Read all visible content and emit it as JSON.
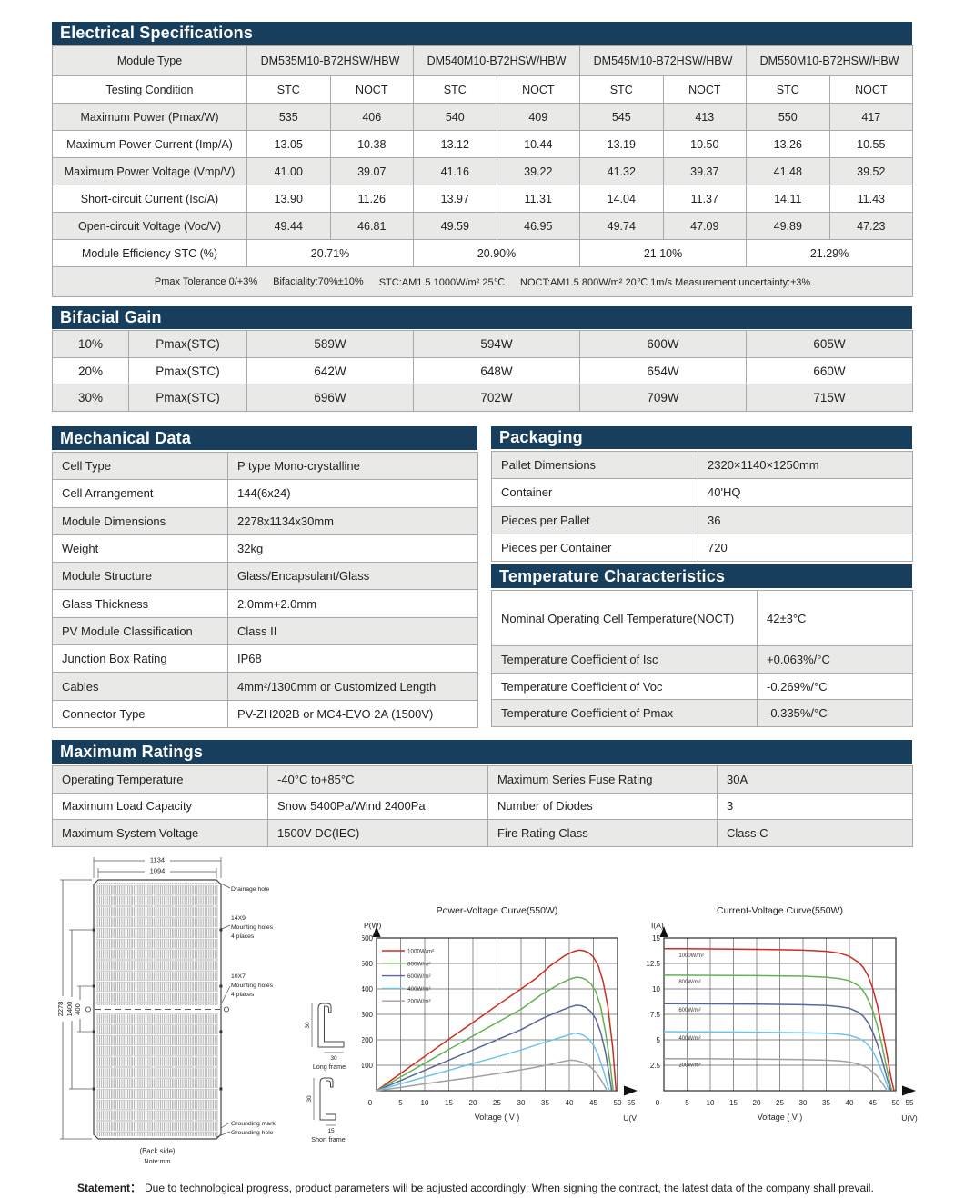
{
  "electrical": {
    "title": "Electrical Specifications",
    "module_type_label": "Module Type",
    "module_types": [
      "DM535M10-B72HSW/HBW",
      "DM540M10-B72HSW/HBW",
      "DM545M10-B72HSW/HBW",
      "DM550M10-B72HSW/HBW"
    ],
    "testing_condition_label": "Testing Condition",
    "conditions": [
      "STC",
      "NOCT",
      "STC",
      "NOCT",
      "STC",
      "NOCT",
      "STC",
      "NOCT"
    ],
    "rows": [
      {
        "label": "Maximum Power (Pmax/W)",
        "values": [
          "535",
          "406",
          "540",
          "409",
          "545",
          "413",
          "550",
          "417"
        ]
      },
      {
        "label": "Maximum Power Current (Imp/A)",
        "values": [
          "13.05",
          "10.38",
          "13.12",
          "10.44",
          "13.19",
          "10.50",
          "13.26",
          "10.55"
        ]
      },
      {
        "label": "Maximum Power Voltage (Vmp/V)",
        "values": [
          "41.00",
          "39.07",
          "41.16",
          "39.22",
          "41.32",
          "39.37",
          "41.48",
          "39.52"
        ]
      },
      {
        "label": "Short-circuit Current (Isc/A)",
        "values": [
          "13.90",
          "11.26",
          "13.97",
          "11.31",
          "14.04",
          "11.37",
          "14.11",
          "11.43"
        ]
      },
      {
        "label": "Open-circuit Voltage (Voc/V)",
        "values": [
          "49.44",
          "46.81",
          "49.59",
          "46.95",
          "49.74",
          "47.09",
          "49.89",
          "47.23"
        ]
      }
    ],
    "efficiency_label": "Module Efficiency STC (%)",
    "efficiency_values": [
      "20.71%",
      "20.90%",
      "21.10%",
      "21.29%"
    ],
    "footnotes": [
      "Pmax Tolerance 0/+3%",
      "Bifaciality:70%±10%",
      "STC:AM1.5 1000W/m² 25℃",
      "NOCT:AM1.5 800W/m² 20℃ 1m/s Measurement uncertainty:±3%"
    ]
  },
  "bifacial": {
    "title": "Bifacial Gain",
    "rows": [
      {
        "gain": "10%",
        "label": "Pmax(STC)",
        "values": [
          "589W",
          "594W",
          "600W",
          "605W"
        ]
      },
      {
        "gain": "20%",
        "label": "Pmax(STC)",
        "values": [
          "642W",
          "648W",
          "654W",
          "660W"
        ]
      },
      {
        "gain": "30%",
        "label": "Pmax(STC)",
        "values": [
          "696W",
          "702W",
          "709W",
          "715W"
        ]
      }
    ]
  },
  "mechanical": {
    "title": "Mechanical Data",
    "rows": [
      {
        "label": "Cell Type",
        "value": "P type Mono-crystalline"
      },
      {
        "label": "Cell Arrangement",
        "value": "144(6x24)"
      },
      {
        "label": "Module Dimensions",
        "value": "2278x1134x30mm"
      },
      {
        "label": "Weight",
        "value": "32kg"
      },
      {
        "label": "Module Structure",
        "value": "Glass/Encapsulant/Glass"
      },
      {
        "label": "Glass Thickness",
        "value": "2.0mm+2.0mm"
      },
      {
        "label": "PV Module Classification",
        "value": "Class II"
      },
      {
        "label": "Junction Box Rating",
        "value": "IP68"
      },
      {
        "label": "Cables",
        "value": "4mm²/1300mm or Customized Length"
      },
      {
        "label": "Connector Type",
        "value": "PV-ZH202B or MC4-EVO 2A (1500V)"
      }
    ]
  },
  "packaging": {
    "title": "Packaging",
    "rows": [
      {
        "label": "Pallet Dimensions",
        "value": "2320×1140×1250mm"
      },
      {
        "label": "Container",
        "value": "40'HQ"
      },
      {
        "label": "Pieces per Pallet",
        "value": "36"
      },
      {
        "label": "Pieces per Container",
        "value": "720"
      }
    ]
  },
  "temperature": {
    "title": "Temperature Characteristics",
    "rows": [
      {
        "label": "Nominal Operating Cell Temperature(NOCT)",
        "value": "42±3°C"
      },
      {
        "label": "Temperature Coefficient of Isc",
        "value": "+0.063%/°C"
      },
      {
        "label": "Temperature Coefficient of Voc",
        "value": "-0.269%/°C"
      },
      {
        "label": "Temperature Coefficient of Pmax",
        "value": "-0.335%/°C"
      }
    ]
  },
  "maximum_ratings": {
    "title": "Maximum Ratings",
    "rows": [
      {
        "label_left": "Operating Temperature",
        "value_left": "-40°C to+85°C",
        "label_right": "Maximum Series Fuse Rating",
        "value_right": "30A"
      },
      {
        "label_left": "Maximum Load Capacity",
        "value_left": "Snow 5400Pa/Wind 2400Pa",
        "label_right": "Number of Diodes",
        "value_right": "3"
      },
      {
        "label_left": "Maximum System Voltage",
        "value_left": "1500V DC(IEC)",
        "label_right": "Fire Rating Class",
        "value_right": "Class C"
      }
    ]
  },
  "drawing": {
    "dim_w_outer": "1134",
    "dim_w_inner": "1094",
    "dim_h_outer": "2278",
    "dim_h_mid": "1400",
    "dim_h_inner": "400",
    "callout_drainage": "Drainage hole",
    "mount1_line1": "14X9",
    "mount1_line2": "Mounting holes",
    "mount1_line3": "4 places",
    "mount2_line1": "10X7",
    "mount2_line2": "Mounting holes",
    "mount2_line3": "4 places",
    "grounding_mark": "Grounding mark",
    "grounding_hole": "Grounding hole",
    "back_side": "(Back side)",
    "note": "Note:mm",
    "long_frame": "Long frame",
    "short_frame": "Short frame",
    "lf_height": "30",
    "lf_width": "30",
    "sf_height": "30",
    "sf_width": "15"
  },
  "statement": {
    "label": "Statement：",
    "text": "Due to technological progress, product parameters will be adjusted accordingly; When signing the contract, the latest data of the company shall prevail."
  },
  "chart_data": [
    {
      "type": "line",
      "title": "Power-Voltage  Curve(550W)",
      "xlabel": "Voltage ( V )",
      "ylabel": "P(W)",
      "x_axis_symbol": "U(V)",
      "xlim": [
        0,
        55
      ],
      "ylim": [
        0,
        600
      ],
      "xticks": [
        0,
        5,
        10,
        15,
        20,
        25,
        30,
        35,
        40,
        45,
        50,
        55
      ],
      "yticks": [
        100,
        200,
        300,
        400,
        500,
        600
      ],
      "grid": true,
      "legend_position": "top-left",
      "series": [
        {
          "name": "1000W/m²",
          "color": "#cf2b20",
          "points": [
            [
              0,
              0
            ],
            [
              5,
              68
            ],
            [
              10,
              135
            ],
            [
              15,
              202
            ],
            [
              20,
              268
            ],
            [
              25,
              335
            ],
            [
              30,
              400
            ],
            [
              33,
              440
            ],
            [
              36,
              490
            ],
            [
              39,
              530
            ],
            [
              41,
              548
            ],
            [
              42,
              552
            ],
            [
              43,
              550
            ],
            [
              44,
              543
            ],
            [
              45,
              525
            ],
            [
              46,
              492
            ],
            [
              47,
              430
            ],
            [
              48,
              330
            ],
            [
              49,
              170
            ],
            [
              49.7,
              0
            ]
          ]
        },
        {
          "name": "800W/m²",
          "color": "#62b152",
          "points": [
            [
              0,
              0
            ],
            [
              5,
              54
            ],
            [
              10,
              108
            ],
            [
              15,
              162
            ],
            [
              20,
              215
            ],
            [
              25,
              268
            ],
            [
              30,
              320
            ],
            [
              34,
              375
            ],
            [
              38,
              420
            ],
            [
              40,
              438
            ],
            [
              41.5,
              446
            ],
            [
              42.5,
              444
            ],
            [
              43.5,
              436
            ],
            [
              44.5,
              420
            ],
            [
              45.5,
              390
            ],
            [
              46.5,
              330
            ],
            [
              47.5,
              230
            ],
            [
              48.5,
              100
            ],
            [
              49.1,
              0
            ]
          ]
        },
        {
          "name": "600W/m²",
          "color": "#56679a",
          "points": [
            [
              0,
              0
            ],
            [
              5,
              40
            ],
            [
              10,
              80
            ],
            [
              15,
              120
            ],
            [
              20,
              160
            ],
            [
              25,
              200
            ],
            [
              30,
              240
            ],
            [
              34,
              280
            ],
            [
              37,
              305
            ],
            [
              40,
              328
            ],
            [
              41.5,
              336
            ],
            [
              42.5,
              334
            ],
            [
              43.5,
              326
            ],
            [
              44.5,
              310
            ],
            [
              45.5,
              282
            ],
            [
              46.5,
              230
            ],
            [
              47.5,
              150
            ],
            [
              48.3,
              60
            ],
            [
              48.8,
              0
            ]
          ]
        },
        {
          "name": "400W/m²",
          "color": "#6cc5e9",
          "points": [
            [
              0,
              0
            ],
            [
              5,
              27
            ],
            [
              10,
              54
            ],
            [
              15,
              80
            ],
            [
              20,
              107
            ],
            [
              25,
              133
            ],
            [
              30,
              160
            ],
            [
              34,
              185
            ],
            [
              37,
              202
            ],
            [
              40,
              220
            ],
            [
              41,
              226
            ],
            [
              42,
              224
            ],
            [
              43,
              217
            ],
            [
              44,
              203
            ],
            [
              45,
              180
            ],
            [
              46,
              140
            ],
            [
              47,
              85
            ],
            [
              47.8,
              30
            ],
            [
              48.3,
              0
            ]
          ]
        },
        {
          "name": "200W/m²",
          "color": "#a1a1a1",
          "points": [
            [
              0,
              0
            ],
            [
              5,
              13
            ],
            [
              10,
              27
            ],
            [
              15,
              40
            ],
            [
              20,
              53
            ],
            [
              25,
              67
            ],
            [
              30,
              82
            ],
            [
              33,
              92
            ],
            [
              36,
              103
            ],
            [
              38,
              112
            ],
            [
              39.5,
              118
            ],
            [
              40.5,
              120
            ],
            [
              41.5,
              118
            ],
            [
              42.5,
              113
            ],
            [
              43.5,
              105
            ],
            [
              44.5,
              92
            ],
            [
              45.5,
              72
            ],
            [
              46.5,
              45
            ],
            [
              47.5,
              12
            ],
            [
              47.8,
              0
            ]
          ]
        }
      ]
    },
    {
      "type": "line",
      "title": "Current-Voltage  Curve(550W)",
      "xlabel": "Voltage ( V )",
      "ylabel": "I(A)",
      "x_axis_symbol": "U(V)",
      "xlim": [
        0,
        55
      ],
      "ylim": [
        0,
        15
      ],
      "xticks": [
        0,
        5,
        10,
        15,
        20,
        25,
        30,
        35,
        40,
        45,
        50,
        55
      ],
      "yticks": [
        2.5,
        5,
        7.5,
        10,
        12.5,
        15
      ],
      "grid": true,
      "legend_position": "inline",
      "series": [
        {
          "name": "1000W/m²",
          "color": "#cf2b20",
          "points": [
            [
              0,
              13.95
            ],
            [
              5,
              13.95
            ],
            [
              10,
              13.93
            ],
            [
              15,
              13.9
            ],
            [
              20,
              13.88
            ],
            [
              25,
              13.85
            ],
            [
              30,
              13.8
            ],
            [
              35,
              13.7
            ],
            [
              38,
              13.5
            ],
            [
              40,
              13.2
            ],
            [
              42,
              12.6
            ],
            [
              43,
              12.1
            ],
            [
              44,
              11.3
            ],
            [
              45,
              10.1
            ],
            [
              46,
              8.4
            ],
            [
              47,
              6.2
            ],
            [
              48,
              3.8
            ],
            [
              49,
              1.2
            ],
            [
              49.6,
              0
            ]
          ]
        },
        {
          "name": "800W/m²",
          "color": "#62b152",
          "points": [
            [
              0,
              11.35
            ],
            [
              10,
              11.33
            ],
            [
              20,
              11.3
            ],
            [
              30,
              11.25
            ],
            [
              35,
              11.15
            ],
            [
              38,
              11.0
            ],
            [
              40,
              10.8
            ],
            [
              42,
              10.3
            ],
            [
              43,
              9.8
            ],
            [
              44,
              9.0
            ],
            [
              45,
              7.9
            ],
            [
              46,
              6.4
            ],
            [
              47,
              4.5
            ],
            [
              48,
              2.3
            ],
            [
              49,
              0.2
            ],
            [
              49.2,
              0
            ]
          ]
        },
        {
          "name": "600W/m²",
          "color": "#56679a",
          "points": [
            [
              0,
              8.55
            ],
            [
              10,
              8.53
            ],
            [
              20,
              8.5
            ],
            [
              30,
              8.45
            ],
            [
              35,
              8.38
            ],
            [
              38,
              8.25
            ],
            [
              40,
              8.1
            ],
            [
              42,
              7.7
            ],
            [
              43,
              7.3
            ],
            [
              44,
              6.7
            ],
            [
              45,
              5.8
            ],
            [
              46,
              4.6
            ],
            [
              47,
              3.1
            ],
            [
              48,
              1.4
            ],
            [
              48.9,
              0
            ]
          ]
        },
        {
          "name": "400W/m²",
          "color": "#6cc5e9",
          "points": [
            [
              0,
              5.8
            ],
            [
              10,
              5.78
            ],
            [
              20,
              5.75
            ],
            [
              30,
              5.7
            ],
            [
              35,
              5.65
            ],
            [
              38,
              5.55
            ],
            [
              40,
              5.45
            ],
            [
              42,
              5.15
            ],
            [
              43,
              4.9
            ],
            [
              44,
              4.5
            ],
            [
              45,
              3.9
            ],
            [
              46,
              3.0
            ],
            [
              47,
              1.9
            ],
            [
              48,
              0.7
            ],
            [
              48.5,
              0
            ]
          ]
        },
        {
          "name": "200W/m²",
          "color": "#a1a1a1",
          "points": [
            [
              0,
              3.15
            ],
            [
              10,
              3.13
            ],
            [
              20,
              3.1
            ],
            [
              30,
              3.05
            ],
            [
              35,
              3.0
            ],
            [
              38,
              2.92
            ],
            [
              40,
              2.82
            ],
            [
              42,
              2.6
            ],
            [
              43,
              2.45
            ],
            [
              44,
              2.2
            ],
            [
              45,
              1.85
            ],
            [
              46,
              1.4
            ],
            [
              47,
              0.8
            ],
            [
              48,
              0.1
            ],
            [
              48.1,
              0
            ]
          ]
        }
      ]
    }
  ]
}
